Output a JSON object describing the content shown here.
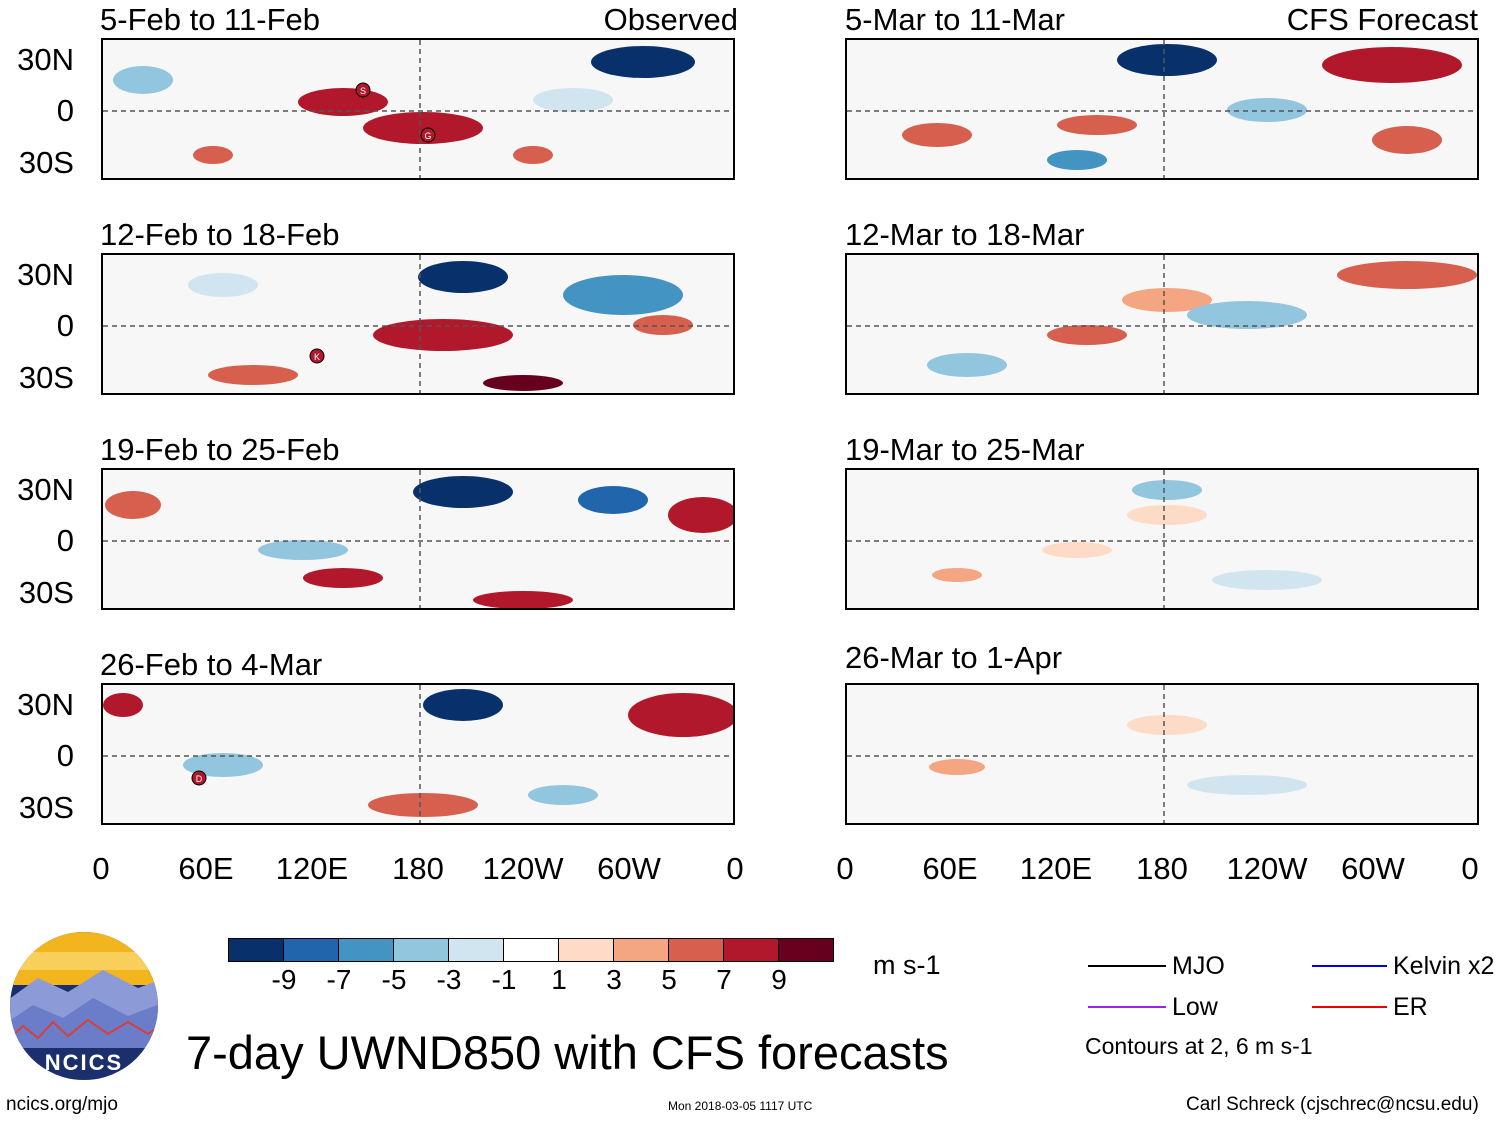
{
  "observed_label": "Observed",
  "forecast_label": "CFS Forecast",
  "panels": {
    "obs": [
      "5-Feb to 11-Feb",
      "12-Feb to 18-Feb",
      "19-Feb to 25-Feb",
      "26-Feb to 4-Mar"
    ],
    "fcst": [
      "5-Mar to 11-Mar",
      "12-Mar to 18-Mar",
      "19-Mar to 25-Mar",
      "26-Mar to 1-Apr"
    ]
  },
  "lat_labels": [
    "30N",
    "0",
    "30S"
  ],
  "lon_labels": [
    "0",
    "60E",
    "120E",
    "180",
    "120W",
    "60W",
    "0"
  ],
  "storm_markers": [
    "S",
    "G",
    "K",
    "D"
  ],
  "colorbar": {
    "labels": [
      "-9",
      "-7",
      "-5",
      "-3",
      "-1",
      "1",
      "3",
      "5",
      "7",
      "9"
    ],
    "units": "m s-1",
    "colors": [
      "#08306b",
      "#2166ac",
      "#4393c3",
      "#92c5de",
      "#d1e5f0",
      "#ffffff",
      "#fddbc7",
      "#f4a582",
      "#d6604d",
      "#b2182b",
      "#67001f"
    ]
  },
  "legend": {
    "mjo": "MJO",
    "kelvin": "Kelvin x2",
    "low": "Low",
    "er": "ER",
    "contours_note": "Contours at 2, 6 m s-1",
    "colors": {
      "mjo": "#000000",
      "kelvin": "#0000ee",
      "low": "#a020f0",
      "er": "#ee0000"
    }
  },
  "logo": {
    "text": "NCICS"
  },
  "main_title": "7-day UWND850 with CFS forecasts",
  "footer": {
    "url": "ncics.org/mjo",
    "timestamp": "Mon 2018-03-05 1117 UTC",
    "author": "Carl Schreck (cjschrec@ncsu.edu)"
  }
}
